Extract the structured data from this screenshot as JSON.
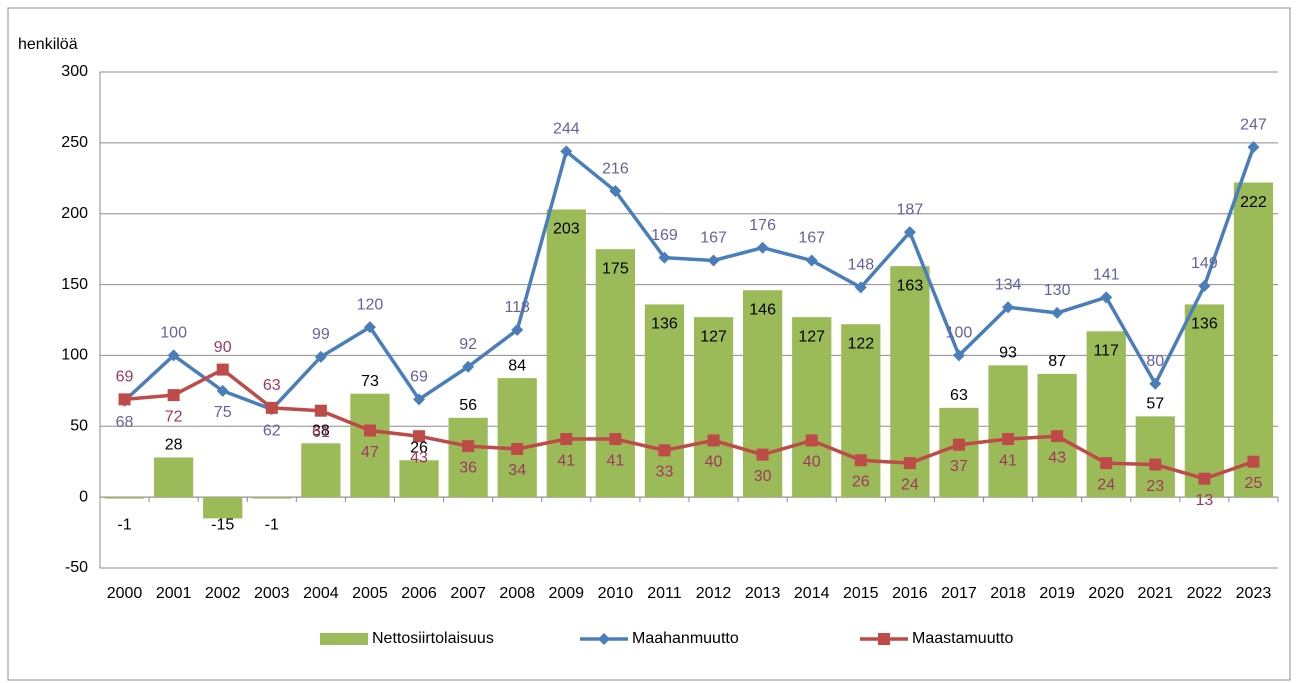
{
  "chart_data": {
    "type": "bar-line",
    "y_label": "henkilöä",
    "categories": [
      "2000",
      "2001",
      "2002",
      "2003",
      "2004",
      "2005",
      "2006",
      "2007",
      "2008",
      "2009",
      "2010",
      "2011",
      "2012",
      "2013",
      "2014",
      "2015",
      "2016",
      "2017",
      "2018",
      "2019",
      "2020",
      "2021",
      "2022",
      "2023"
    ],
    "series": [
      {
        "name": "Nettosiirtolaisuus",
        "kind": "bar",
        "color": "#9bbb59",
        "label_color": "#000000",
        "values": [
          -1,
          28,
          -15,
          -1,
          38,
          73,
          26,
          56,
          84,
          203,
          175,
          136,
          127,
          146,
          127,
          122,
          163,
          63,
          93,
          87,
          117,
          57,
          136,
          222
        ]
      },
      {
        "name": "Maahanmuutto",
        "kind": "line",
        "marker": "diamond",
        "color": "#4a7ebb",
        "label_color": "#64649c",
        "values": [
          68,
          100,
          75,
          62,
          99,
          120,
          69,
          92,
          118,
          244,
          216,
          169,
          167,
          176,
          167,
          148,
          187,
          100,
          134,
          130,
          141,
          80,
          149,
          247
        ]
      },
      {
        "name": "Maastamuutto",
        "kind": "line",
        "marker": "square",
        "color": "#be4b48",
        "label_color": "#a0385e",
        "values": [
          69,
          72,
          90,
          63,
          61,
          47,
          43,
          36,
          34,
          41,
          41,
          33,
          40,
          30,
          40,
          26,
          24,
          37,
          41,
          43,
          24,
          23,
          13,
          25
        ]
      }
    ],
    "ylim": [
      -50,
      300
    ],
    "yticks": [
      -50,
      0,
      50,
      100,
      150,
      200,
      250,
      300
    ],
    "grid": true,
    "legend": "bottom"
  }
}
